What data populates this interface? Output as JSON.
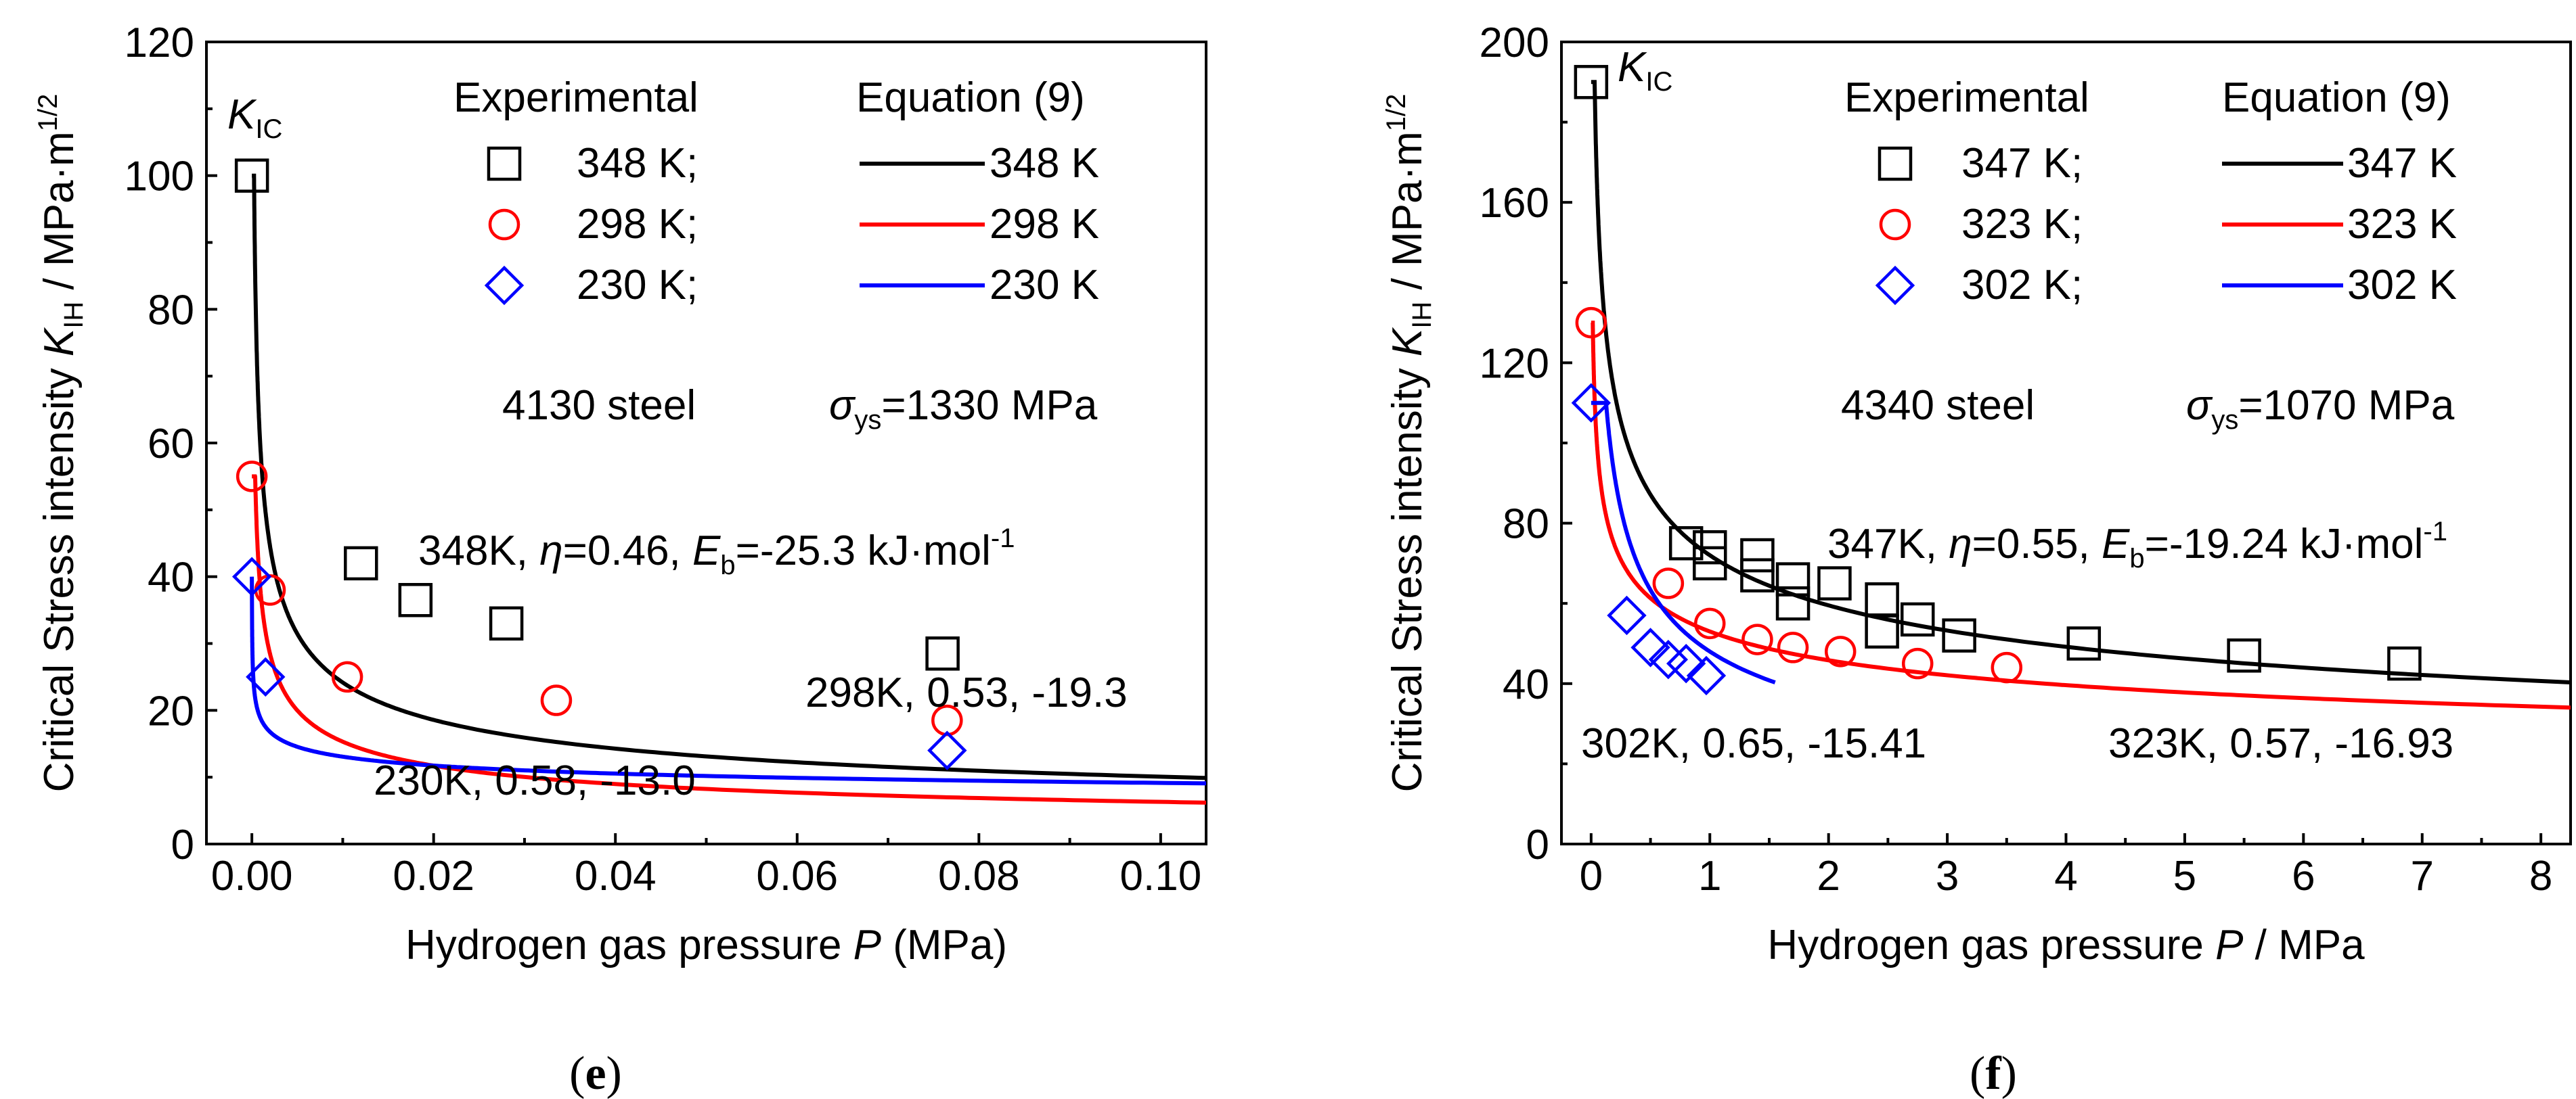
{
  "chart_data": [
    {
      "type": "scatter",
      "panel_label": "e",
      "ylabel_main": "Critical Stress intensity ",
      "ylabel_sym": "K",
      "ylabel_sub": "IH",
      "ylabel_unit": " / MPa·m",
      "ylabel_sup": "1/2",
      "xlabel_main": "Hydrogen gas pressure ",
      "xlabel_sym": "P",
      "xlabel_unit": " (MPa)",
      "xlim": [
        -0.005,
        0.105
      ],
      "ylim": [
        0,
        120
      ],
      "xticks": [
        0.0,
        0.02,
        0.04,
        0.06,
        0.08,
        0.1
      ],
      "xtick_labels": [
        "0.00",
        "0.02",
        "0.04",
        "0.06",
        "0.08",
        "0.10"
      ],
      "yticks": [
        0,
        20,
        40,
        60,
        80,
        100,
        120
      ],
      "ytick_labels": [
        "0",
        "20",
        "40",
        "60",
        "80",
        "100",
        "120"
      ],
      "kic_label": {
        "sym": "K",
        "sub": "IC"
      },
      "legend": {
        "exp_title": "Experimental",
        "eq_title": "Equation (9)"
      },
      "material": "4130 steel",
      "sigma": {
        "sym": "σ",
        "sub": "ys",
        "text": "=1330 MPa"
      },
      "series": [
        {
          "name": "348 K",
          "exp_label": "348 K;",
          "color": "#000000",
          "marker": "square",
          "kic": 100,
          "a": 4.2,
          "b": 0.38,
          "p0": 5e-06,
          "xmax": 0.105,
          "points": [
            [
              0.0,
              100
            ],
            [
              0.012,
              42
            ],
            [
              0.018,
              36.5
            ],
            [
              0.028,
              33
            ],
            [
              0.076,
              28.5
            ]
          ]
        },
        {
          "name": "298 K",
          "exp_label": "298 K;",
          "color": "#ff0000",
          "marker": "circle",
          "kic": 55,
          "a": 2.6,
          "b": 0.385,
          "p0": 3e-05,
          "xmax": 0.105,
          "points": [
            [
              0.0,
              55
            ],
            [
              0.002,
              38
            ],
            [
              0.0105,
              25
            ],
            [
              0.0335,
              21.5
            ],
            [
              0.0765,
              18.5
            ]
          ]
        },
        {
          "name": "230 K",
          "exp_label": "230 K;",
          "color": "#0000ff",
          "marker": "diamond",
          "kic": 40,
          "a": 6.4,
          "b": 0.155,
          "p0": 3e-05,
          "xmax": 0.105,
          "points": [
            [
              0.0,
              40
            ],
            [
              0.0015,
              25
            ],
            [
              0.0765,
              14
            ]
          ]
        }
      ],
      "annotations": [
        {
          "segs": [
            [
              "348K, ",
              ""
            ],
            [
              "η",
              "i"
            ],
            [
              "=0.46, ",
              ""
            ],
            [
              "E",
              "i"
            ],
            [
              "b",
              "sub"
            ],
            [
              "=-25.3 kJ·mol",
              ""
            ],
            [
              "-1",
              "sup"
            ]
          ]
        },
        {
          "segs": [
            [
              "298K, 0.53, -19.3",
              ""
            ]
          ]
        },
        {
          "segs": [
            [
              "230K, 0.58, -13.0",
              ""
            ]
          ]
        }
      ]
    },
    {
      "type": "scatter",
      "panel_label": "f",
      "ylabel_main": "Critical Stress intensity ",
      "ylabel_sym": "K",
      "ylabel_sub": "IH",
      "ylabel_unit": " / MPa·m",
      "ylabel_sup": "1/2",
      "xlabel_main": "Hydrogen gas pressure ",
      "xlabel_sym": "P",
      "xlabel_unit": " / MPa",
      "xlim": [
        -0.25,
        8.25
      ],
      "ylim": [
        0,
        200
      ],
      "xticks": [
        0,
        1,
        2,
        3,
        4,
        5,
        6,
        7,
        8
      ],
      "xtick_labels": [
        "0",
        "1",
        "2",
        "3",
        "4",
        "5",
        "6",
        "7",
        "8"
      ],
      "yticks": [
        0,
        40,
        80,
        120,
        160,
        200
      ],
      "ytick_labels": [
        "0",
        "40",
        "80",
        "120",
        "160",
        "200"
      ],
      "kic_label": {
        "sym": "K",
        "sub": "IC"
      },
      "legend": {
        "exp_title": "Experimental",
        "eq_title": "Equation (9)"
      },
      "material": "4340 steel",
      "sigma": {
        "sym": "σ",
        "sub": "ys",
        "text": "=1070 MPa"
      },
      "series": [
        {
          "name": "347 K",
          "exp_label": "347 K;",
          "color": "#000000",
          "marker": "square",
          "kic": 190,
          "a": 72,
          "b": 0.275,
          "p0": 0.0003,
          "xmax": 8.25,
          "points": [
            [
              0.0,
              190
            ],
            [
              0.8,
              75
            ],
            [
              1.0,
              74
            ],
            [
              1.0,
              70
            ],
            [
              1.4,
              72
            ],
            [
              1.4,
              67
            ],
            [
              1.7,
              66
            ],
            [
              1.7,
              60
            ],
            [
              2.05,
              65
            ],
            [
              2.45,
              61
            ],
            [
              2.45,
              53
            ],
            [
              2.75,
              56
            ],
            [
              3.1,
              52
            ],
            [
              4.15,
              50
            ],
            [
              5.5,
              47
            ],
            [
              6.85,
              45
            ]
          ]
        },
        {
          "name": "323 K",
          "exp_label": "323 K;",
          "color": "#ff0000",
          "marker": "circle",
          "kic": 130,
          "a": 53,
          "b": 0.21,
          "p0": 0.0003,
          "xmax": 8.25,
          "points": [
            [
              0.0,
              130
            ],
            [
              0.65,
              65
            ],
            [
              1.0,
              55
            ],
            [
              1.4,
              51
            ],
            [
              1.7,
              49
            ],
            [
              2.1,
              48
            ],
            [
              2.75,
              45
            ],
            [
              3.5,
              44
            ]
          ]
        },
        {
          "name": "302 K",
          "exp_label": "302 K;",
          "color": "#0000ff",
          "marker": "diamond",
          "kic": 110,
          "a": 48,
          "b": 0.4,
          "p0": 0.0002,
          "xmax": 1.55,
          "points": [
            [
              0.0,
              110
            ],
            [
              0.3,
              57
            ],
            [
              0.5,
              49
            ],
            [
              0.65,
              46
            ],
            [
              0.8,
              45
            ],
            [
              0.97,
              42
            ]
          ]
        }
      ],
      "annotations": [
        {
          "segs": [
            [
              "347K, ",
              ""
            ],
            [
              "η",
              "i"
            ],
            [
              "=0.55, ",
              ""
            ],
            [
              "E",
              "i"
            ],
            [
              "b",
              "sub"
            ],
            [
              "=-19.24 kJ·mol",
              ""
            ],
            [
              "-1",
              "sup"
            ]
          ]
        },
        {
          "segs": [
            [
              "302K, 0.65, -15.41",
              ""
            ]
          ]
        },
        {
          "segs": [
            [
              "323K, 0.57, -16.93",
              ""
            ]
          ]
        }
      ]
    }
  ]
}
